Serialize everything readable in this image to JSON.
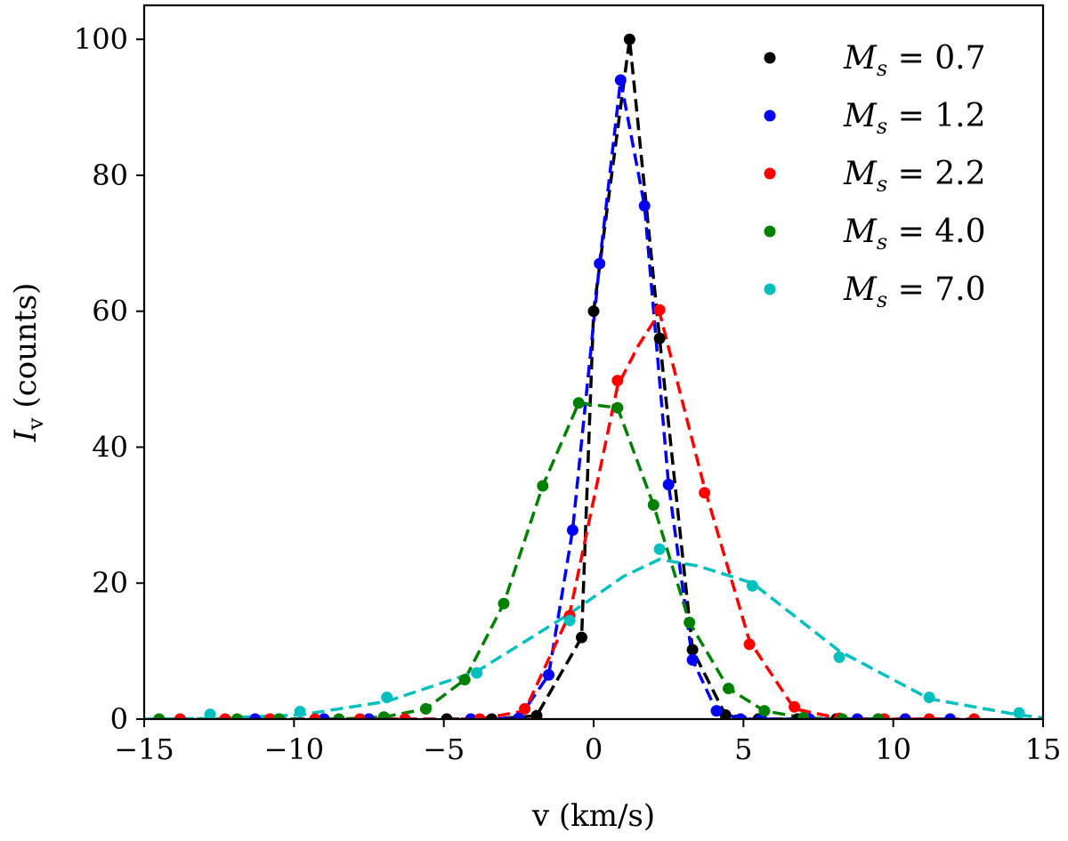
{
  "chart_data": {
    "type": "line",
    "title": "",
    "xlabel": "v (km/s)",
    "ylabel_main": "I",
    "ylabel_sub": "v",
    "ylabel_rest": " (counts)",
    "xlim": [
      -15,
      15
    ],
    "ylim": [
      0,
      105
    ],
    "xticks": [
      -15,
      -10,
      -5,
      0,
      5,
      10,
      15
    ],
    "xtick_labels": [
      "−15",
      "−10",
      "−5",
      "0",
      "5",
      "10",
      "15"
    ],
    "yticks": [
      0,
      20,
      40,
      60,
      80,
      100
    ],
    "ytick_labels": [
      "0",
      "20",
      "40",
      "60",
      "80",
      "100"
    ],
    "legend_position": "top-right",
    "series": [
      {
        "name": "M_s = 0.7",
        "legend_main": "M",
        "legend_sub": "s",
        "legend_value": " = 0.7",
        "color": "#000000",
        "x": [
          -4.9,
          -3.4,
          -1.9,
          -0.4,
          0.0,
          1.2,
          2.2,
          3.3,
          4.4,
          5.5,
          6.8,
          8.1,
          9.5
        ],
        "y": [
          0.0,
          0.0,
          0.5,
          12.0,
          60.0,
          100.0,
          56.0,
          10.2,
          0.6,
          0.0,
          0.0,
          0.0,
          0.0
        ]
      },
      {
        "name": "M_s = 1.2",
        "legend_main": "M",
        "legend_sub": "s",
        "legend_value": " = 1.2",
        "color": "#0000ff",
        "x": [
          -11.3,
          -10.5,
          -9.0,
          -7.5,
          -4.1,
          -2.5,
          -1.5,
          -0.7,
          0.2,
          0.9,
          1.7,
          2.5,
          3.3,
          4.1,
          4.9,
          5.6,
          7.2,
          8.8,
          10.4,
          11.9
        ],
        "y": [
          0.0,
          0.0,
          0.0,
          0.0,
          0.0,
          0.1,
          6.5,
          27.8,
          67.0,
          94.0,
          75.5,
          34.5,
          8.7,
          1.2,
          0.0,
          0.0,
          0.0,
          0.0,
          0.0,
          0.0
        ]
      },
      {
        "name": "M_s = 2.2",
        "legend_main": "M",
        "legend_sub": "s",
        "legend_value": " = 2.2",
        "color": "#ff0000",
        "x": [
          -13.8,
          -12.3,
          -10.8,
          -9.3,
          -7.8,
          -6.3,
          -3.8,
          -2.3,
          -0.8,
          0.8,
          2.2,
          3.7,
          5.2,
          6.7,
          8.2,
          9.7,
          11.2,
          12.7
        ],
        "y": [
          0.0,
          0.0,
          0.0,
          0.0,
          0.0,
          0.0,
          0.0,
          1.5,
          15.2,
          49.8,
          60.2,
          33.3,
          11.0,
          1.8,
          0.1,
          0.0,
          0.0,
          0.0
        ],
        "fit_x": [
          -13.8,
          -12.3,
          -10.8,
          -9.3,
          -7.8,
          -6.3,
          -3.8,
          -2.3,
          -0.8,
          0.8,
          1.5,
          2.2,
          3.7,
          5.2,
          6.7,
          8.2,
          9.7,
          11.2,
          12.7
        ],
        "fit_y": [
          0.0,
          0.0,
          0.0,
          0.0,
          0.0,
          0.0,
          0.0,
          1.2,
          15.5,
          49.0,
          55.0,
          59.8,
          34.0,
          11.5,
          1.5,
          0.1,
          0.0,
          0.0,
          0.0
        ]
      },
      {
        "name": "M_s = 4.0",
        "legend_main": "M",
        "legend_sub": "s",
        "legend_value": " = 4.0",
        "color": "#008000",
        "x": [
          -14.5,
          -11.9,
          -10.5,
          -8.5,
          -7.0,
          -5.6,
          -4.3,
          -3.0,
          -1.7,
          -0.5,
          0.8,
          2.0,
          3.2,
          4.5,
          5.7,
          7.0,
          8.3,
          9.5
        ],
        "y": [
          0.0,
          0.0,
          0.0,
          0.0,
          0.3,
          1.5,
          5.8,
          17.0,
          34.3,
          46.5,
          45.8,
          31.5,
          14.2,
          4.5,
          1.2,
          0.2,
          0.0,
          0.0
        ]
      },
      {
        "name": "M_s = 7.0",
        "legend_main": "M",
        "legend_sub": "s",
        "legend_value": " = 7.0",
        "color": "#00bfbf",
        "x": [
          -12.8,
          -9.8,
          -6.9,
          -3.9,
          -0.8,
          2.2,
          5.3,
          8.2,
          11.2,
          14.2
        ],
        "y": [
          0.7,
          1.1,
          3.2,
          6.8,
          14.5,
          25.0,
          19.6,
          9.1,
          3.2,
          0.9
        ],
        "fit_x": [
          -15.0,
          -12.8,
          -9.8,
          -6.9,
          -3.9,
          -0.8,
          1.0,
          2.2,
          3.5,
          5.3,
          8.2,
          11.2,
          14.2,
          15.0
        ],
        "fit_y": [
          0.0,
          0.1,
          0.6,
          2.6,
          7.0,
          15.5,
          21.0,
          23.5,
          22.5,
          20.0,
          10.0,
          3.0,
          0.6,
          0.2
        ]
      }
    ]
  }
}
